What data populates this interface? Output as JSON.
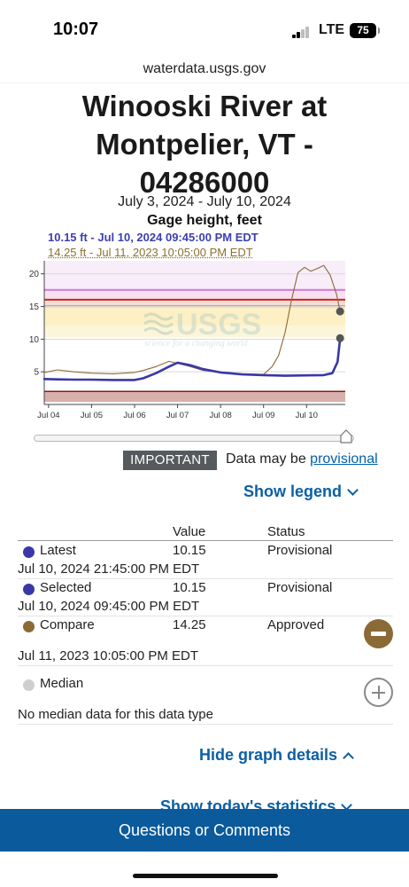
{
  "status_bar": {
    "time": "10:07",
    "network": "LTE",
    "battery": "75"
  },
  "browser": {
    "url": "waterdata.usgs.gov"
  },
  "page": {
    "title": "Winooski River at Montpelier, VT - 04286000",
    "date_range": "July 3, 2024 - July 10, 2024",
    "parameter": "Gage height, feet"
  },
  "tooltip": {
    "selected": "10.15 ft - Jul 10, 2024 09:45:00 PM EDT",
    "compare": "14.25 ft - Jul 11, 2023 10:05:00 PM EDT"
  },
  "watermark": {
    "logo_text": "USGS",
    "tagline": "science for a changing world"
  },
  "colors": {
    "current_series": "#3a37a8",
    "compare_series": "#8b6a36",
    "median_series": "#cfcfcf",
    "link": "#0b5fa5",
    "footer": "#0a5a9c"
  },
  "chart_data": {
    "type": "line",
    "title": "",
    "xlabel": "",
    "ylabel": "",
    "x_ticks": [
      "Jul 04",
      "Jul 05",
      "Jul 06",
      "Jul 07",
      "Jul 08",
      "Jul 09",
      "Jul 10"
    ],
    "y_ticks": [
      5,
      10,
      15,
      20
    ],
    "ylim": [
      0,
      22
    ],
    "xlim_days": [
      3.9,
      10.9
    ],
    "grid": true,
    "flood_bands": [
      {
        "from": 0.4,
        "to": 1.9,
        "color": "#d8b0ac"
      },
      {
        "from": 1.9,
        "to": 2.1,
        "color": "#8b1a10"
      },
      {
        "from": 10.3,
        "to": 12.1,
        "color": "#fbf6da"
      },
      {
        "from": 12.1,
        "to": 14.9,
        "color": "#fcf0c4"
      },
      {
        "from": 14.9,
        "to": 15.2,
        "color": "#d4a21a"
      },
      {
        "from": 15.2,
        "to": 15.9,
        "color": "#f7dcd6"
      },
      {
        "from": 15.9,
        "to": 16.2,
        "color": "#cc2a1a"
      },
      {
        "from": 16.2,
        "to": 17.4,
        "color": "#f7e0f2"
      },
      {
        "from": 17.4,
        "to": 17.7,
        "color": "#d878d4"
      },
      {
        "from": 17.7,
        "to": 22,
        "color": "#f7eefa"
      }
    ],
    "series": [
      {
        "x": [
          3.9,
          4.2,
          4.6,
          5.0,
          5.5,
          6.0,
          6.2,
          6.5,
          6.8,
          7.0,
          7.3,
          7.6,
          8.0,
          8.5,
          9.0,
          9.5,
          10.0,
          10.4,
          10.6,
          10.72,
          10.78
        ],
        "y": [
          3.9,
          3.85,
          3.8,
          3.8,
          3.75,
          3.75,
          4.0,
          4.8,
          5.8,
          6.4,
          6.0,
          5.4,
          4.9,
          4.6,
          4.5,
          4.4,
          4.45,
          4.5,
          4.8,
          6.5,
          10.15
        ]
      },
      {
        "x": [
          3.9,
          4.2,
          4.6,
          5.0,
          5.5,
          6.0,
          6.2,
          6.5,
          6.8,
          7.0,
          7.3,
          7.6,
          8.0,
          8.5,
          9.0,
          9.2,
          9.35,
          9.5,
          9.65,
          9.8,
          9.95,
          10.1,
          10.25,
          10.4,
          10.55,
          10.7,
          10.78
        ],
        "y": [
          4.9,
          5.3,
          5.0,
          4.8,
          4.7,
          4.9,
          5.2,
          5.8,
          6.6,
          6.3,
          5.8,
          5.2,
          4.9,
          4.7,
          4.6,
          5.8,
          7.5,
          11,
          16,
          20.2,
          21,
          20.4,
          20.8,
          21.3,
          19.8,
          16.8,
          14.25
        ]
      }
    ]
  },
  "notice": {
    "badge": "IMPORTANT",
    "text": "Data may be",
    "link": "provisional"
  },
  "legend_toggle": "Show legend",
  "legend_table": {
    "headers": [
      "Value",
      "Status"
    ],
    "rows": [
      {
        "name": "Latest",
        "value": "10.15",
        "status": "Provisional",
        "time": "Jul 10, 2024 21:45:00 PM EDT"
      },
      {
        "name": "Selected",
        "value": "10.15",
        "status": "Provisional",
        "time": "Jul 10, 2024 09:45:00 PM EDT"
      },
      {
        "name": "Compare",
        "value": "14.25",
        "status": "Approved",
        "time": "Jul 11, 2023 10:05:00 PM EDT"
      },
      {
        "name": "Median",
        "value": "",
        "status": "",
        "time": "No median data for this data type"
      }
    ]
  },
  "hide_details": "Hide graph details",
  "show_stats": "Show today's statistics",
  "footer": "Questions or Comments"
}
